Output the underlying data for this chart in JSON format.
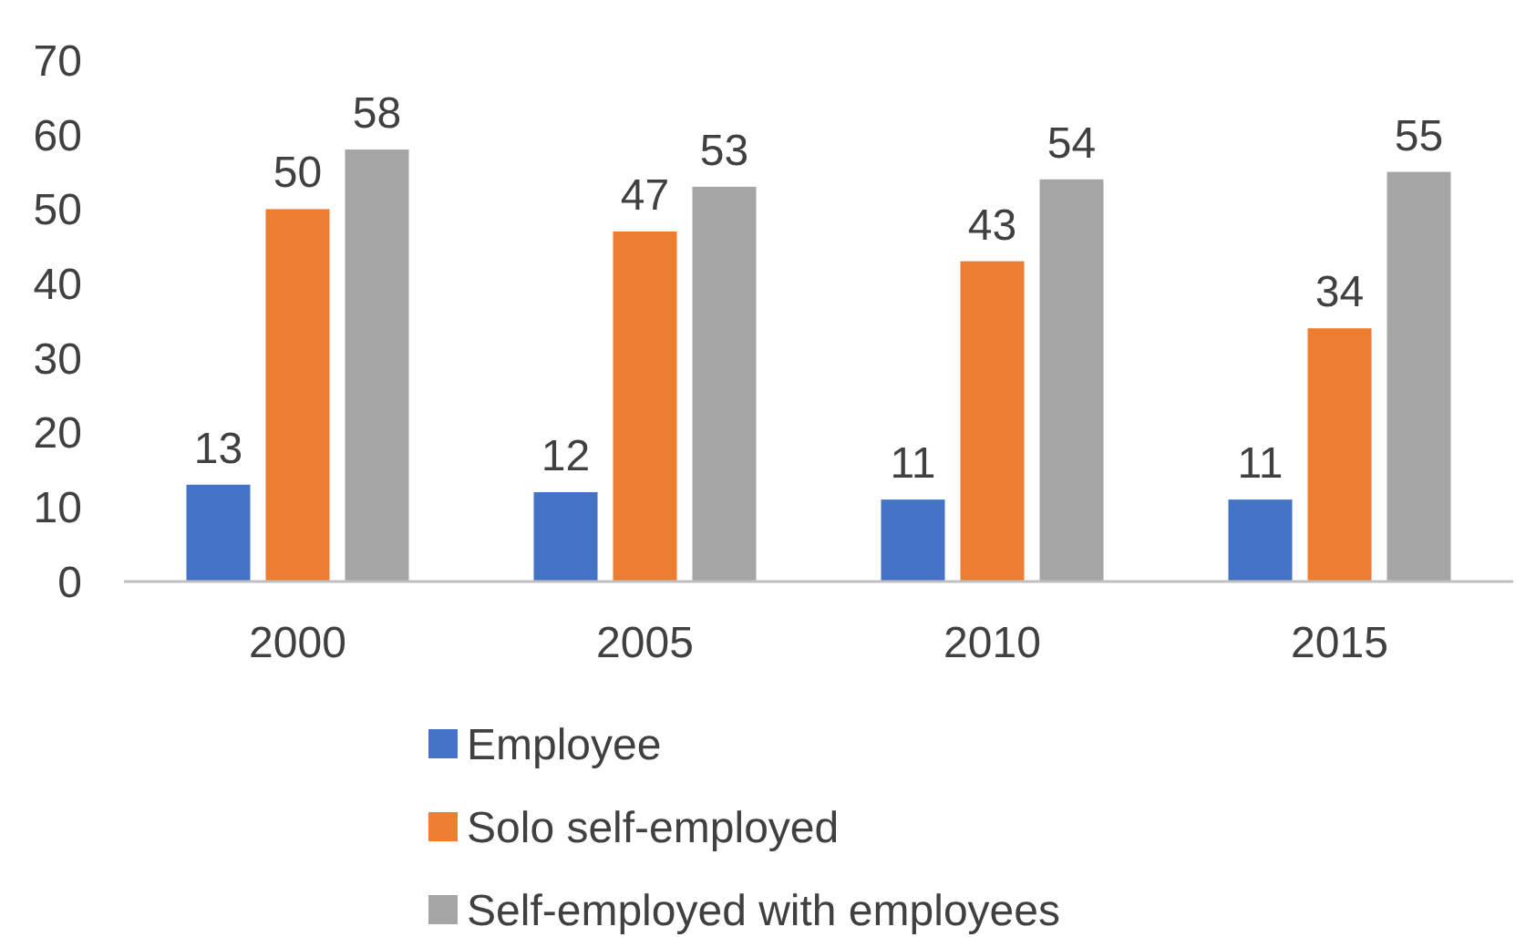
{
  "chart_data": {
    "type": "bar",
    "categories": [
      "2000",
      "2005",
      "2010",
      "2015"
    ],
    "series": [
      {
        "name": "Employee",
        "color": "#4472c4",
        "values": [
          13,
          12,
          11,
          11
        ]
      },
      {
        "name": "Solo self-employed",
        "color": "#ed7d31",
        "values": [
          50,
          47,
          43,
          34
        ]
      },
      {
        "name": "Self-employed with employees",
        "color": "#a5a5a5",
        "values": [
          58,
          53,
          54,
          55
        ]
      }
    ],
    "ylim": [
      0,
      70
    ],
    "yticks": [
      0,
      10,
      20,
      30,
      40,
      50,
      60,
      70
    ],
    "data_labels": true,
    "legend": "bottom",
    "grid": false
  }
}
